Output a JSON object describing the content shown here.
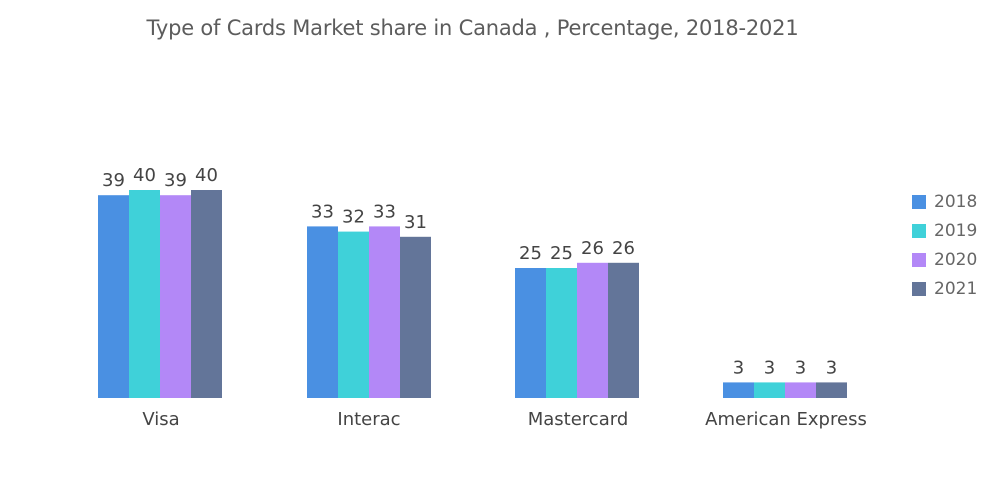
{
  "chart_data": {
    "type": "bar",
    "title": "Type of Cards Market share in Canada , Percentage, 2018-2021",
    "categories": [
      "Visa",
      "Interac",
      "Mastercard",
      "American Express"
    ],
    "series": [
      {
        "name": "2018",
        "values": [
          39,
          33,
          25,
          3
        ],
        "color": "#4a90e2"
      },
      {
        "name": "2019",
        "values": [
          40,
          32,
          25,
          3
        ],
        "color": "#3fd1d9"
      },
      {
        "name": "2020",
        "values": [
          39,
          33,
          26,
          3
        ],
        "color": "#b388f7"
      },
      {
        "name": "2021",
        "values": [
          40,
          31,
          26,
          3
        ],
        "color": "#637599"
      }
    ],
    "xlabel": "",
    "ylabel": "",
    "ylim": [
      0,
      40
    ],
    "grid": false,
    "legend": "right"
  }
}
